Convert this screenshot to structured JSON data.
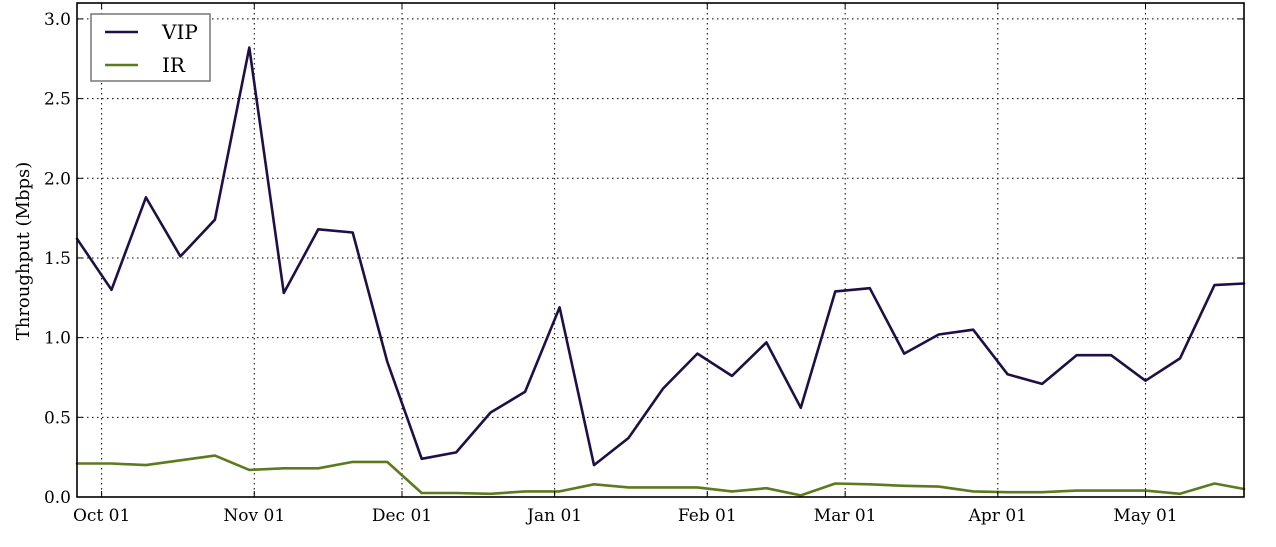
{
  "chart_data": {
    "type": "line",
    "title": "",
    "xlabel": "",
    "ylabel": "Throughput (Mbps)",
    "x_tick_labels": [
      "Oct 01",
      "Nov 01",
      "Dec 01",
      "Jan 01",
      "Feb 01",
      "Mar 01",
      "Apr 01",
      "May 01"
    ],
    "x_tick_dates": [
      "2012-10-01",
      "2012-11-01",
      "2012-12-01",
      "2013-01-01",
      "2013-02-01",
      "2013-03-01",
      "2013-04-01",
      "2013-05-01"
    ],
    "y_ticks": [
      "0.0",
      "0.5",
      "1.0",
      "1.5",
      "2.0",
      "2.5",
      "3.0"
    ],
    "xlim": [
      "2012-09-26",
      "2013-05-21"
    ],
    "ylim": [
      0,
      3.1
    ],
    "grid": true,
    "legend_position": "top-left",
    "x": [
      "2012-09-26",
      "2012-10-03",
      "2012-10-10",
      "2012-10-17",
      "2012-10-24",
      "2012-10-31",
      "2012-11-07",
      "2012-11-14",
      "2012-11-21",
      "2012-11-28",
      "2012-12-05",
      "2012-12-12",
      "2012-12-19",
      "2012-12-26",
      "2013-01-02",
      "2013-01-09",
      "2013-01-16",
      "2013-01-23",
      "2013-01-30",
      "2013-02-06",
      "2013-02-13",
      "2013-02-20",
      "2013-02-27",
      "2013-03-06",
      "2013-03-13",
      "2013-03-20",
      "2013-03-27",
      "2013-04-03",
      "2013-04-10",
      "2013-04-17",
      "2013-04-24",
      "2013-05-01",
      "2013-05-08",
      "2013-05-15",
      "2013-05-21"
    ],
    "series": [
      {
        "name": "VIP",
        "color": "#1e1046",
        "values": [
          1.62,
          1.3,
          1.88,
          1.51,
          1.74,
          2.82,
          1.28,
          1.68,
          1.66,
          0.85,
          0.24,
          0.28,
          0.53,
          0.66,
          1.19,
          0.2,
          0.37,
          0.68,
          0.9,
          0.76,
          0.97,
          0.56,
          1.29,
          1.31,
          0.9,
          1.02,
          1.05,
          0.77,
          0.71,
          0.89,
          0.89,
          0.73,
          0.87,
          1.33,
          1.34
        ]
      },
      {
        "name": "IR",
        "color": "#5c7a1e",
        "values": [
          0.21,
          0.21,
          0.2,
          0.23,
          0.26,
          0.17,
          0.18,
          0.18,
          0.22,
          0.22,
          0.025,
          0.025,
          0.02,
          0.035,
          0.035,
          0.08,
          0.06,
          0.06,
          0.06,
          0.035,
          0.055,
          0.01,
          0.085,
          0.08,
          0.07,
          0.065,
          0.035,
          0.03,
          0.03,
          0.04,
          0.04,
          0.04,
          0.02,
          0.085,
          0.05
        ]
      }
    ]
  }
}
